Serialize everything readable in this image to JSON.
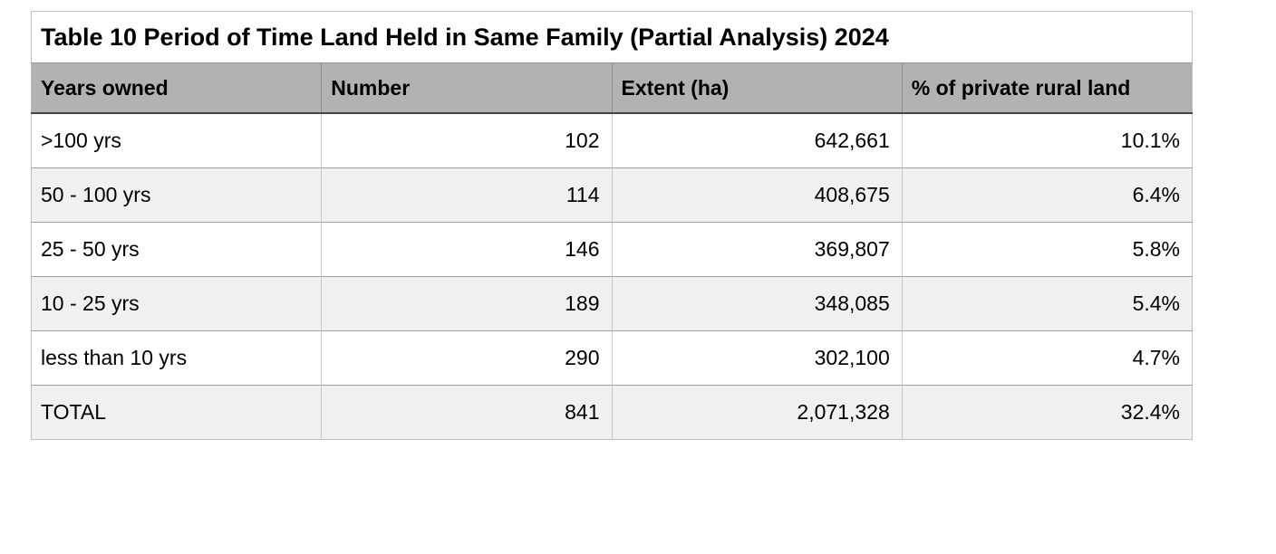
{
  "chart_data": {
    "type": "table",
    "title": "Table 10 Period of Time Land Held in Same Family (Partial Analysis) 2024",
    "columns": [
      "Years owned",
      "Number",
      "Extent (ha)",
      "% of private rural land"
    ],
    "rows": [
      [
        ">100 yrs",
        "102",
        "642,661",
        "10.1%"
      ],
      [
        "50 - 100 yrs",
        "114",
        "408,675",
        "6.4%"
      ],
      [
        "25 - 50 yrs",
        "146",
        "369,807",
        "5.8%"
      ],
      [
        "10 - 25 yrs",
        "189",
        "348,085",
        "5.4%"
      ],
      [
        "less than 10 yrs",
        "290",
        "302,100",
        "4.7%"
      ],
      [
        "TOTAL",
        "841",
        "2,071,328",
        "32.4%"
      ]
    ],
    "totals_row_index": 5
  },
  "colors": {
    "header_background": "#b2b2b2",
    "alternate_row_background": "#f0f0f0",
    "header_bottom_rule": "#454545",
    "row_divider": "#a0a0a0",
    "column_divider": "#c6c6c6",
    "outer_border": "#c0c0c0",
    "text": "#000000",
    "page_background": "#ffffff"
  }
}
